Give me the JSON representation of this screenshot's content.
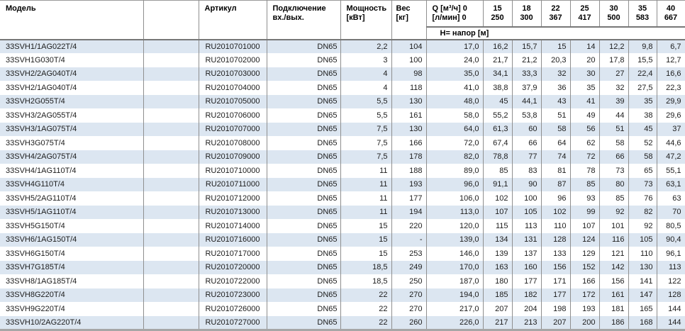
{
  "colors": {
    "row_alt": "#dce6f1",
    "grid_line": "#8f8f8f",
    "header_rule": "#777777",
    "bottom_border": "#a6a6a6",
    "text": "#1c1c1c"
  },
  "table": {
    "header": {
      "model": "Модель",
      "article": "Артикул",
      "connection": [
        "Подключение",
        "вх./вых."
      ],
      "power": [
        "Мощность",
        "[кВт]"
      ],
      "weight": [
        "Вес",
        "[кг]"
      ],
      "q": [
        "Q [м³/ч] 0",
        "[л/мин] 0"
      ],
      "head_band": "Н= напор [м]",
      "flow_columns": [
        {
          "m3h": "15",
          "lmin": "250"
        },
        {
          "m3h": "18",
          "lmin": "300"
        },
        {
          "m3h": "22",
          "lmin": "367"
        },
        {
          "m3h": "25",
          "lmin": "417"
        },
        {
          "m3h": "30",
          "lmin": "500"
        },
        {
          "m3h": "35",
          "lmin": "583"
        },
        {
          "m3h": "40",
          "lmin": "667"
        }
      ]
    },
    "rows": [
      {
        "model": "33SVH1/1AG022T/4",
        "article": "RU2010701000",
        "connection": "DN65",
        "power": "2,2",
        "weight": "104",
        "q0": "17,0",
        "heads": [
          "16,2",
          "15,7",
          "15",
          "14",
          "12,2",
          "9,8",
          "6,7"
        ]
      },
      {
        "model": "33SVH1G030T/4",
        "article": "RU2010702000",
        "connection": "DN65",
        "power": "3",
        "weight": "100",
        "q0": "24,0",
        "heads": [
          "21,7",
          "21,2",
          "20,3",
          "20",
          "17,8",
          "15,5",
          "12,7"
        ]
      },
      {
        "model": "33SVH2/2AG040T/4",
        "article": "RU2010703000",
        "connection": "DN65",
        "power": "4",
        "weight": "98",
        "q0": "35,0",
        "heads": [
          "34,1",
          "33,3",
          "32",
          "30",
          "27",
          "22,4",
          "16,6"
        ]
      },
      {
        "model": "33SVH2/1AG040T/4",
        "article": "RU2010704000",
        "connection": "DN65",
        "power": "4",
        "weight": "118",
        "q0": "41,0",
        "heads": [
          "38,8",
          "37,9",
          "36",
          "35",
          "32",
          "27,5",
          "22,3"
        ]
      },
      {
        "model": "33SVH2G055T/4",
        "article": "RU2010705000",
        "connection": "DN65",
        "power": "5,5",
        "weight": "130",
        "q0": "48,0",
        "heads": [
          "45",
          "44,1",
          "43",
          "41",
          "39",
          "35",
          "29,9"
        ]
      },
      {
        "model": "33SVH3/2AG055T/4",
        "article": "RU2010706000",
        "connection": "DN65",
        "power": "5,5",
        "weight": "161",
        "q0": "58,0",
        "heads": [
          "55,2",
          "53,8",
          "51",
          "49",
          "44",
          "38",
          "29,6"
        ]
      },
      {
        "model": "33SVH3/1AG075T/4",
        "article": "RU2010707000",
        "connection": "DN65",
        "power": "7,5",
        "weight": "130",
        "q0": "64,0",
        "heads": [
          "61,3",
          "60",
          "58",
          "56",
          "51",
          "45",
          "37"
        ]
      },
      {
        "model": "33SVH3G075T/4",
        "article": "RU2010708000",
        "connection": "DN65",
        "power": "7,5",
        "weight": "166",
        "q0": "72,0",
        "heads": [
          "67,4",
          "66",
          "64",
          "62",
          "58",
          "52",
          "44,6"
        ]
      },
      {
        "model": "33SVH4/2AG075T/4",
        "article": "RU2010709000",
        "connection": "DN65",
        "power": "7,5",
        "weight": "178",
        "q0": "82,0",
        "heads": [
          "78,8",
          "77",
          "74",
          "72",
          "66",
          "58",
          "47,2"
        ]
      },
      {
        "model": "33SVH4/1AG110T/4",
        "article": "RU2010710000",
        "connection": "DN65",
        "power": "11",
        "weight": "188",
        "q0": "89,0",
        "heads": [
          "85",
          "83",
          "81",
          "78",
          "73",
          "65",
          "55,1"
        ]
      },
      {
        "model": "33SVH4G110T/4",
        "article": "RU2010711000",
        "connection": "DN65",
        "power": "11",
        "weight": "193",
        "q0": "96,0",
        "heads": [
          "91,1",
          "90",
          "87",
          "85",
          "80",
          "73",
          "63,1"
        ]
      },
      {
        "model": "33SVH5/2AG110T/4",
        "article": "RU2010712000",
        "connection": "DN65",
        "power": "11",
        "weight": "177",
        "q0": "106,0",
        "heads": [
          "102",
          "100",
          "96",
          "93",
          "85",
          "76",
          "63"
        ]
      },
      {
        "model": "33SVH5/1AG110T/4",
        "article": "RU2010713000",
        "connection": "DN65",
        "power": "11",
        "weight": "194",
        "q0": "113,0",
        "heads": [
          "107",
          "105",
          "102",
          "99",
          "92",
          "82",
          "70"
        ]
      },
      {
        "model": "33SVH5G150T/4",
        "article": "RU2010714000",
        "connection": "DN65",
        "power": "15",
        "weight": "220",
        "q0": "120,0",
        "heads": [
          "115",
          "113",
          "110",
          "107",
          "101",
          "92",
          "80,5"
        ]
      },
      {
        "model": "33SVH6/1AG150T/4",
        "article": "RU2010716000",
        "connection": "DN65",
        "power": "15",
        "weight": "-",
        "q0": "139,0",
        "heads": [
          "134",
          "131",
          "128",
          "124",
          "116",
          "105",
          "90,4"
        ]
      },
      {
        "model": "33SVH6G150T/4",
        "article": "RU2010717000",
        "connection": "DN65",
        "power": "15",
        "weight": "253",
        "q0": "146,0",
        "heads": [
          "139",
          "137",
          "133",
          "129",
          "121",
          "110",
          "96,1"
        ]
      },
      {
        "model": "33SVH7G185T/4",
        "article": "RU2010720000",
        "connection": "DN65",
        "power": "18,5",
        "weight": "249",
        "q0": "170,0",
        "heads": [
          "163",
          "160",
          "156",
          "152",
          "142",
          "130",
          "113"
        ]
      },
      {
        "model": "33SVH8/1AG185T/4",
        "article": "RU2010722000",
        "connection": "DN65",
        "power": "18,5",
        "weight": "250",
        "q0": "187,0",
        "heads": [
          "180",
          "177",
          "171",
          "166",
          "156",
          "141",
          "122"
        ]
      },
      {
        "model": "33SVH8G220T/4",
        "article": "RU2010723000",
        "connection": "DN65",
        "power": "22",
        "weight": "270",
        "q0": "194,0",
        "heads": [
          "185",
          "182",
          "177",
          "172",
          "161",
          "147",
          "128"
        ]
      },
      {
        "model": "33SVH9G220T/4",
        "article": "RU2010726000",
        "connection": "DN65",
        "power": "22",
        "weight": "270",
        "q0": "217,0",
        "heads": [
          "207",
          "204",
          "198",
          "193",
          "181",
          "165",
          "144"
        ]
      },
      {
        "model": "33SVH10/2AG220T/4",
        "article": "RU2010727000",
        "connection": "DN65",
        "power": "22",
        "weight": "260",
        "q0": "226,0",
        "heads": [
          "217",
          "213",
          "207",
          "200",
          "186",
          "168",
          "144"
        ]
      }
    ]
  }
}
